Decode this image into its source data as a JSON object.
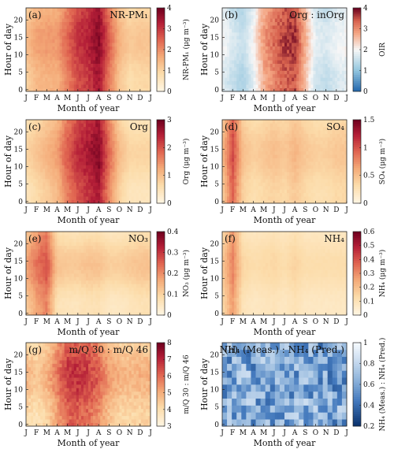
{
  "figure": {
    "months": [
      "J",
      "F",
      "M",
      "A",
      "M",
      "J",
      "J",
      "A",
      "S",
      "O",
      "N",
      "D",
      "J"
    ],
    "hour_ticks": [
      0,
      5,
      10,
      15,
      20
    ],
    "xlabel": "Month of year",
    "ylabel": "Hour of day"
  },
  "chart_data": [
    {
      "type": "heatmap",
      "panel": "(a)",
      "title": "NR-PM₁",
      "colorbar_label": "NR-PM₁ (μg m⁻³)",
      "colormap": "orange-red",
      "vmin": 0,
      "vmax": 4,
      "cbar_ticks": [
        0,
        1,
        2,
        3,
        4
      ],
      "monthly_mean": [
        1.2,
        1.6,
        1.7,
        1.7,
        2.3,
        2.9,
        3.1,
        3.6,
        2.4,
        1.4,
        1.0,
        1.1,
        1.1
      ],
      "diurnal_amplitude": 0.35
    },
    {
      "type": "heatmap",
      "panel": "(b)",
      "title": "Org : inOrg",
      "colorbar_label": "OIR",
      "colormap": "blue-white-red",
      "vmin": 0,
      "vmax": 4,
      "center": 2,
      "cbar_ticks": [
        0,
        1,
        2,
        3,
        4
      ],
      "monthly_mean": [
        1.9,
        1.6,
        1.4,
        1.9,
        2.8,
        3.2,
        3.5,
        3.6,
        2.6,
        1.7,
        1.6,
        1.8,
        1.9
      ],
      "diurnal_amplitude": 0.25
    },
    {
      "type": "heatmap",
      "panel": "(c)",
      "title": "Org",
      "colorbar_label": "Org (μg m⁻³)",
      "colormap": "orange-red",
      "vmin": 0,
      "vmax": 3,
      "cbar_ticks": [
        0,
        1,
        2,
        3
      ],
      "monthly_mean": [
        0.6,
        0.8,
        1.0,
        1.2,
        1.8,
        2.2,
        2.4,
        2.7,
        1.7,
        0.9,
        0.6,
        0.6,
        0.6
      ],
      "diurnal_amplitude": 0.3
    },
    {
      "type": "heatmap",
      "panel": "(d)",
      "title": "SO₄",
      "colorbar_label": "SO₄ (μg m⁻³)",
      "colormap": "orange-red",
      "vmin": 0,
      "vmax": 1.5,
      "cbar_ticks": [
        0,
        0.5,
        1,
        1.5
      ],
      "monthly_mean": [
        0.45,
        1.0,
        0.45,
        0.35,
        0.4,
        0.45,
        0.4,
        0.5,
        0.4,
        0.35,
        0.35,
        0.4,
        0.4
      ],
      "diurnal_amplitude": 0.12
    },
    {
      "type": "heatmap",
      "panel": "(e)",
      "title": "NO₃",
      "colorbar_label": "NO₃ (μg m⁻³)",
      "colormap": "orange-red",
      "vmin": 0,
      "vmax": 0.4,
      "cbar_ticks": [
        0,
        0.1,
        0.2,
        0.3,
        0.4
      ],
      "monthly_mean": [
        0.14,
        0.2,
        0.24,
        0.1,
        0.09,
        0.09,
        0.1,
        0.1,
        0.08,
        0.08,
        0.09,
        0.1,
        0.1
      ],
      "diurnal_amplitude": 0.06
    },
    {
      "type": "heatmap",
      "panel": "(f)",
      "title": "NH₄",
      "colorbar_label": "NH₄ (μg m⁻³)",
      "colormap": "orange-red",
      "vmin": 0,
      "vmax": 0.6,
      "cbar_ticks": [
        0,
        0.1,
        0.2,
        0.3,
        0.4,
        0.5,
        0.6
      ],
      "monthly_mean": [
        0.15,
        0.3,
        0.12,
        0.1,
        0.11,
        0.12,
        0.1,
        0.13,
        0.1,
        0.1,
        0.1,
        0.1,
        0.1
      ],
      "diurnal_amplitude": 0.05
    },
    {
      "type": "heatmap",
      "panel": "(g)",
      "title": "m/Q 30 : m/Q 46",
      "colorbar_label": "m/Q 30 : m/Q 46",
      "colormap": "orange-red",
      "vmin": 3,
      "vmax": 8,
      "cbar_ticks": [
        3,
        4,
        5,
        6,
        7,
        8
      ],
      "monthly_mean": [
        4.5,
        4.2,
        4.6,
        5.5,
        6.4,
        6.5,
        6.3,
        5.8,
        5.0,
        4.6,
        4.5,
        4.6,
        4.6
      ],
      "diurnal_amplitude": 0.7
    },
    {
      "type": "heatmap",
      "panel": "(h)",
      "title": "NH₄ (Meas.) : NH₄ (Pred.)",
      "colorbar_label": "NH₄ (Meas.) : NH₄ (Pred.)",
      "colormap": "blues-reversed",
      "vmin": 0.2,
      "vmax": 1,
      "cbar_ticks": [
        0.2,
        0.4,
        0.6,
        0.8,
        1
      ],
      "monthly_mean": [
        0.6,
        0.58,
        0.62,
        0.6,
        0.62,
        0.6,
        0.58,
        0.6,
        0.62,
        0.6,
        0.55,
        0.6,
        0.6
      ],
      "diurnal_amplitude": 0.08
    }
  ]
}
